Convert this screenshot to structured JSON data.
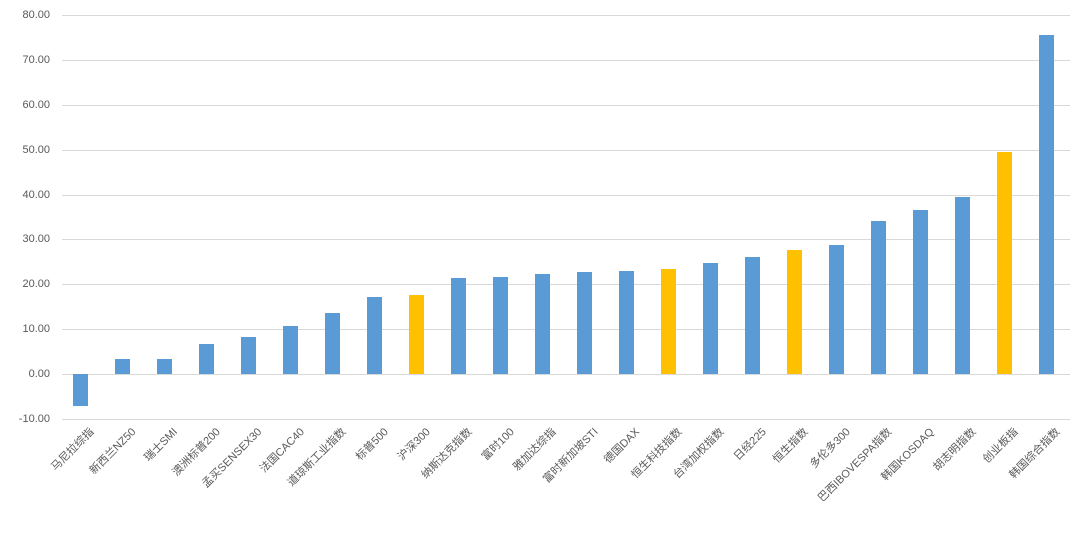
{
  "chart_data": {
    "type": "bar",
    "title": "",
    "xlabel": "",
    "ylabel": "",
    "ylim": [
      -10,
      80
    ],
    "grid": true,
    "legend": "none",
    "y_ticks": [
      80,
      70,
      60,
      50,
      40,
      30,
      20,
      10,
      0,
      -10
    ],
    "y_tick_labels": [
      "80.00",
      "70.00",
      "60.00",
      "50.00",
      "40.00",
      "30.00",
      "20.00",
      "10.00",
      "0.00",
      "-10.00"
    ],
    "categories": [
      "马尼拉综指",
      "新西兰NZ50",
      "瑞士SMI",
      "澳洲标普200",
      "孟买SENSEX30",
      "法国CAC40",
      "道琼斯工业指数",
      "标普500",
      "沪深300",
      "纳斯达克指数",
      "富时100",
      "雅加达综指",
      "富时新加坡STI",
      "德国DAX",
      "恒生科技指数",
      "台湾加权指数",
      "日经225",
      "恒生指数",
      "多伦多300",
      "巴西IBOVESPA指数",
      "韩国KOSDAQ",
      "胡志明指数",
      "创业板指",
      "韩国综合指数"
    ],
    "values": [
      -7.2,
      3.3,
      3.4,
      6.8,
      8.2,
      10.7,
      13.7,
      17.2,
      17.6,
      21.3,
      21.6,
      22.2,
      22.7,
      22.9,
      23.4,
      24.7,
      26.0,
      27.6,
      28.8,
      34.0,
      36.5,
      39.4,
      49.5,
      75.5
    ],
    "highlight_indices": [
      8,
      14,
      17,
      22
    ],
    "colors": {
      "bar_default": "#5B9BD5",
      "bar_highlight": "#FFC000",
      "gridline": "#D9D9D9",
      "tick_text": "#595959",
      "background": "#FFFFFF"
    }
  }
}
